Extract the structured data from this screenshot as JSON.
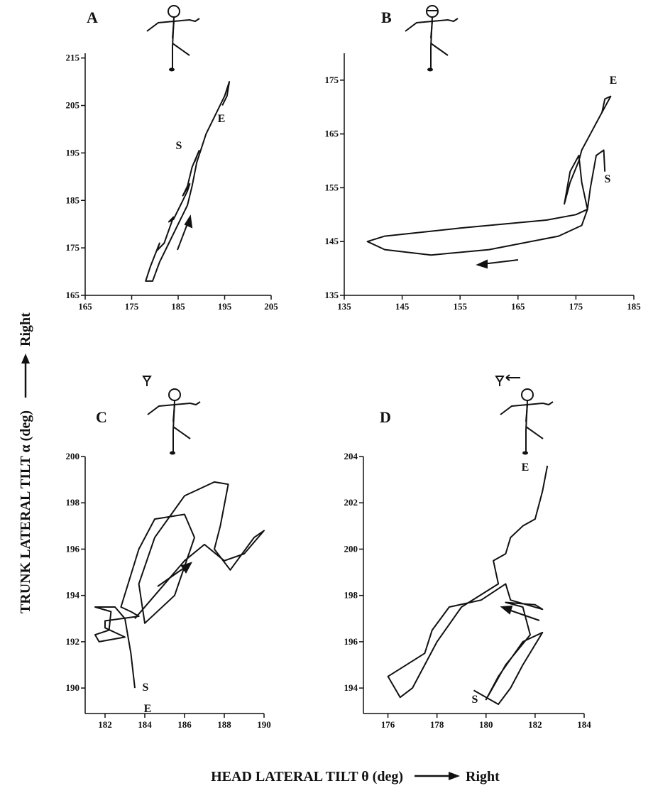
{
  "chart_data": [
    {
      "type": "line",
      "title": "A",
      "annotations": [
        "S",
        "E"
      ],
      "color": "#111111",
      "xlim": [
        165,
        205
      ],
      "ylim": [
        165,
        216
      ],
      "xticks": [
        165,
        175,
        185,
        195,
        205
      ],
      "yticks": [
        165,
        175,
        185,
        195,
        205,
        215
      ],
      "x": [
        188.5,
        189.5,
        188,
        187,
        186,
        187.5,
        187,
        185.5,
        184,
        183,
        184,
        182,
        180.5,
        181,
        179,
        178,
        179.5,
        181,
        183,
        185,
        187,
        188,
        189,
        191,
        193,
        195,
        196,
        195.5,
        194.5
      ],
      "values": [
        193,
        195.5,
        192,
        188,
        186,
        188.5,
        187,
        184,
        181,
        180.5,
        181.5,
        176,
        174.5,
        176,
        171,
        168,
        168,
        172,
        176,
        180,
        184,
        188,
        193,
        199,
        203,
        207,
        210,
        207,
        205
      ]
    },
    {
      "type": "line",
      "title": "B",
      "annotations": [
        "E",
        "S"
      ],
      "color": "#111111",
      "xlim": [
        135,
        185
      ],
      "ylim": [
        135,
        180
      ],
      "xticks": [
        135,
        145,
        155,
        165,
        175,
        185
      ],
      "yticks": [
        135,
        145,
        155,
        165,
        175
      ],
      "x": [
        180,
        179.8,
        178.5,
        177.5,
        177,
        176,
        172,
        160,
        150,
        142,
        139,
        142,
        155,
        170,
        175,
        177,
        176,
        175.5,
        174,
        173,
        174,
        175.5,
        176,
        177.5,
        179,
        180,
        181,
        180,
        179.5
      ],
      "values": [
        158,
        162,
        161,
        155,
        151,
        148,
        146,
        143.5,
        142.5,
        143.5,
        145,
        146,
        147.5,
        149,
        150,
        151,
        156,
        161,
        158,
        152,
        156,
        160,
        162,
        165,
        168,
        170,
        172,
        171.5,
        169
      ]
    },
    {
      "type": "line",
      "title": "C",
      "annotations": [
        "S",
        "E"
      ],
      "color": "#111111",
      "xlim": [
        181,
        190
      ],
      "ylim": [
        188.9,
        200
      ],
      "xticks": [
        182,
        184,
        186,
        188,
        190
      ],
      "yticks": [
        190,
        192,
        194,
        196,
        198,
        200
      ],
      "x": [
        183.5,
        183.3,
        183,
        182.5,
        181.5,
        182.3,
        182.2,
        181.5,
        181.7,
        183,
        182,
        182,
        183.7,
        183.3,
        182.8,
        183.7,
        184.5,
        186,
        186.5,
        185.5,
        184,
        183.7,
        184.5,
        186,
        187.5,
        188.2,
        187.8,
        187.5,
        188.3,
        189.5,
        190,
        189,
        188,
        187,
        186,
        184.5,
        183.5
      ],
      "values": [
        190,
        191.5,
        193,
        193.5,
        193.5,
        193.3,
        192.5,
        192.3,
        192,
        192.2,
        192.6,
        192.9,
        193.1,
        193.3,
        193.5,
        196,
        197.3,
        197.5,
        196.5,
        194,
        192.8,
        194.5,
        196.5,
        198.3,
        198.9,
        198.8,
        197,
        196,
        195.1,
        196.5,
        196.8,
        195.8,
        195.5,
        196.2,
        195.5,
        194,
        193
      ]
    },
    {
      "type": "line",
      "title": "D",
      "annotations": [
        "E",
        "S"
      ],
      "color": "#111111",
      "xlim": [
        175,
        184
      ],
      "ylim": [
        192.9,
        204
      ],
      "xticks": [
        176,
        178,
        180,
        182,
        184
      ],
      "yticks": [
        194,
        196,
        198,
        200,
        202,
        204
      ],
      "x": [
        179.5,
        180.5,
        181,
        181.5,
        182.3,
        181.5,
        180.5,
        180,
        180.8,
        181.8,
        181.5,
        180.8,
        182,
        182.3,
        181,
        180.8,
        179.8,
        178.5,
        177.8,
        177.5,
        176,
        176.5,
        177,
        178,
        179,
        180.5,
        180.3,
        180.8,
        181,
        181.5,
        182,
        182.3,
        182.5
      ],
      "values": [
        193.9,
        193.3,
        194,
        195,
        196.4,
        196,
        194.5,
        193.5,
        195,
        196.3,
        197.5,
        197.7,
        197.6,
        197.4,
        197.8,
        198.5,
        197.8,
        197.5,
        196.5,
        195.5,
        194.5,
        193.6,
        194,
        196,
        197.5,
        198.5,
        199.5,
        199.8,
        200.5,
        201,
        201.3,
        202.5,
        203.6
      ]
    }
  ],
  "y_label": "TRUNK LATERAL TILT α (deg)",
  "y_right": "Right",
  "x_label": "HEAD LATERAL TILT θ (deg)",
  "x_right": "Right"
}
